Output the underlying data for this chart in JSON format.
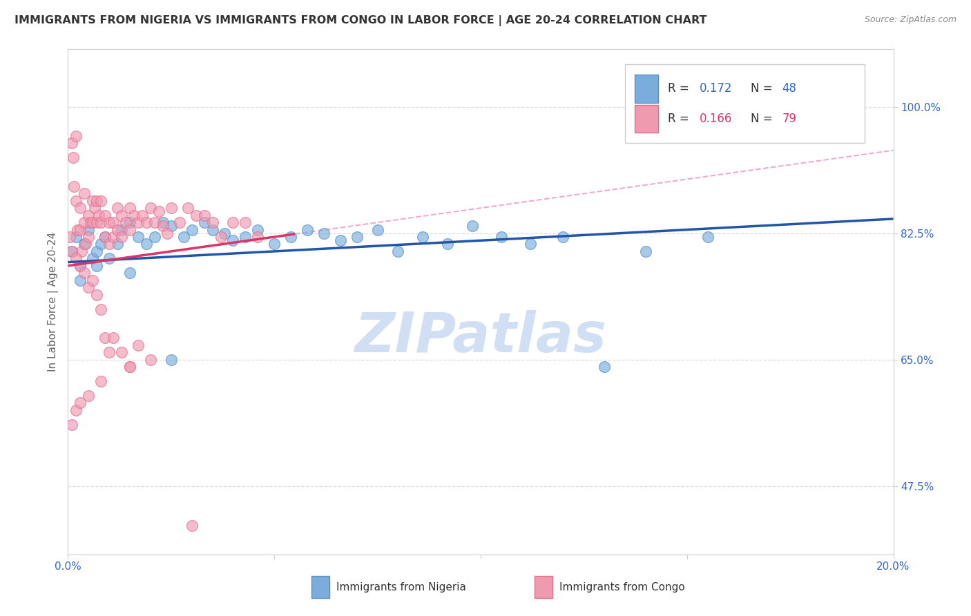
{
  "title": "IMMIGRANTS FROM NIGERIA VS IMMIGRANTS FROM CONGO IN LABOR FORCE | AGE 20-24 CORRELATION CHART",
  "source": "Source: ZipAtlas.com",
  "ylabel": "In Labor Force | Age 20-24",
  "ytick_labels": [
    "100.0%",
    "82.5%",
    "65.0%",
    "47.5%"
  ],
  "ytick_values": [
    1.0,
    0.825,
    0.65,
    0.475
  ],
  "xlim": [
    0.0,
    0.2
  ],
  "ylim": [
    0.38,
    1.08
  ],
  "nigeria_color": "#7aaddc",
  "nigeria_edge": "#5590cc",
  "congo_color": "#f09ab0",
  "congo_edge": "#e07090",
  "trendline_nigeria_color": "#2255aa",
  "trendline_congo_solid_color": "#dd3366",
  "trendline_congo_dash_color": "#f0aacc",
  "nigeria_R": 0.172,
  "nigeria_N": 48,
  "congo_R": 0.166,
  "congo_N": 79,
  "watermark": "ZIPatlas",
  "watermark_color": "#c5d8f0",
  "background_color": "#ffffff",
  "grid_color": "#dddddd",
  "legend_R_N_color_blue": "#3366cc",
  "legend_R_N_color_pink": "#dd3366",
  "tick_color": "#3366cc",
  "ylabel_color": "#666666",
  "title_color": "#333333",
  "source_color": "#888888",
  "nigeria_x": [
    0.001,
    0.002,
    0.003,
    0.004,
    0.005,
    0.006,
    0.007,
    0.008,
    0.009,
    0.01,
    0.012,
    0.013,
    0.015,
    0.017,
    0.019,
    0.021,
    0.023,
    0.025,
    0.028,
    0.03,
    0.033,
    0.035,
    0.038,
    0.04,
    0.043,
    0.046,
    0.05,
    0.054,
    0.058,
    0.062,
    0.066,
    0.07,
    0.075,
    0.08,
    0.086,
    0.092,
    0.098,
    0.105,
    0.112,
    0.12,
    0.13,
    0.14,
    0.155,
    0.17,
    0.003,
    0.007,
    0.015,
    0.025
  ],
  "nigeria_y": [
    0.8,
    0.82,
    0.78,
    0.81,
    0.83,
    0.79,
    0.8,
    0.81,
    0.82,
    0.79,
    0.81,
    0.83,
    0.84,
    0.82,
    0.81,
    0.82,
    0.84,
    0.835,
    0.82,
    0.83,
    0.84,
    0.83,
    0.825,
    0.815,
    0.82,
    0.83,
    0.81,
    0.82,
    0.83,
    0.825,
    0.815,
    0.82,
    0.83,
    0.8,
    0.82,
    0.81,
    0.835,
    0.82,
    0.81,
    0.82,
    0.64,
    0.8,
    0.82,
    1.0,
    0.76,
    0.78,
    0.77,
    0.65
  ],
  "congo_x": [
    0.0005,
    0.001,
    0.0012,
    0.0015,
    0.002,
    0.002,
    0.0022,
    0.003,
    0.003,
    0.0032,
    0.004,
    0.004,
    0.0042,
    0.005,
    0.005,
    0.0055,
    0.006,
    0.006,
    0.0065,
    0.007,
    0.007,
    0.0075,
    0.008,
    0.008,
    0.009,
    0.009,
    0.01,
    0.01,
    0.011,
    0.011,
    0.012,
    0.012,
    0.013,
    0.013,
    0.014,
    0.015,
    0.015,
    0.016,
    0.017,
    0.018,
    0.019,
    0.02,
    0.021,
    0.022,
    0.023,
    0.024,
    0.025,
    0.027,
    0.029,
    0.031,
    0.033,
    0.035,
    0.037,
    0.04,
    0.043,
    0.046,
    0.001,
    0.002,
    0.003,
    0.004,
    0.005,
    0.006,
    0.007,
    0.008,
    0.009,
    0.01,
    0.011,
    0.013,
    0.015,
    0.017,
    0.02,
    0.001,
    0.002,
    0.003,
    0.005,
    0.008,
    0.015,
    0.03
  ],
  "congo_y": [
    0.82,
    0.95,
    0.93,
    0.89,
    0.96,
    0.87,
    0.83,
    0.86,
    0.83,
    0.8,
    0.88,
    0.84,
    0.81,
    0.85,
    0.82,
    0.84,
    0.87,
    0.84,
    0.86,
    0.84,
    0.87,
    0.85,
    0.84,
    0.87,
    0.85,
    0.82,
    0.84,
    0.81,
    0.84,
    0.82,
    0.86,
    0.83,
    0.85,
    0.82,
    0.84,
    0.86,
    0.83,
    0.85,
    0.84,
    0.85,
    0.84,
    0.86,
    0.84,
    0.855,
    0.835,
    0.825,
    0.86,
    0.84,
    0.86,
    0.85,
    0.85,
    0.84,
    0.82,
    0.84,
    0.84,
    0.82,
    0.8,
    0.79,
    0.78,
    0.77,
    0.75,
    0.76,
    0.74,
    0.72,
    0.68,
    0.66,
    0.68,
    0.66,
    0.64,
    0.67,
    0.65,
    0.56,
    0.58,
    0.59,
    0.6,
    0.62,
    0.64,
    0.42
  ],
  "bottom_legend_nigeria": "Immigrants from Nigeria",
  "bottom_legend_congo": "Immigrants from Congo"
}
